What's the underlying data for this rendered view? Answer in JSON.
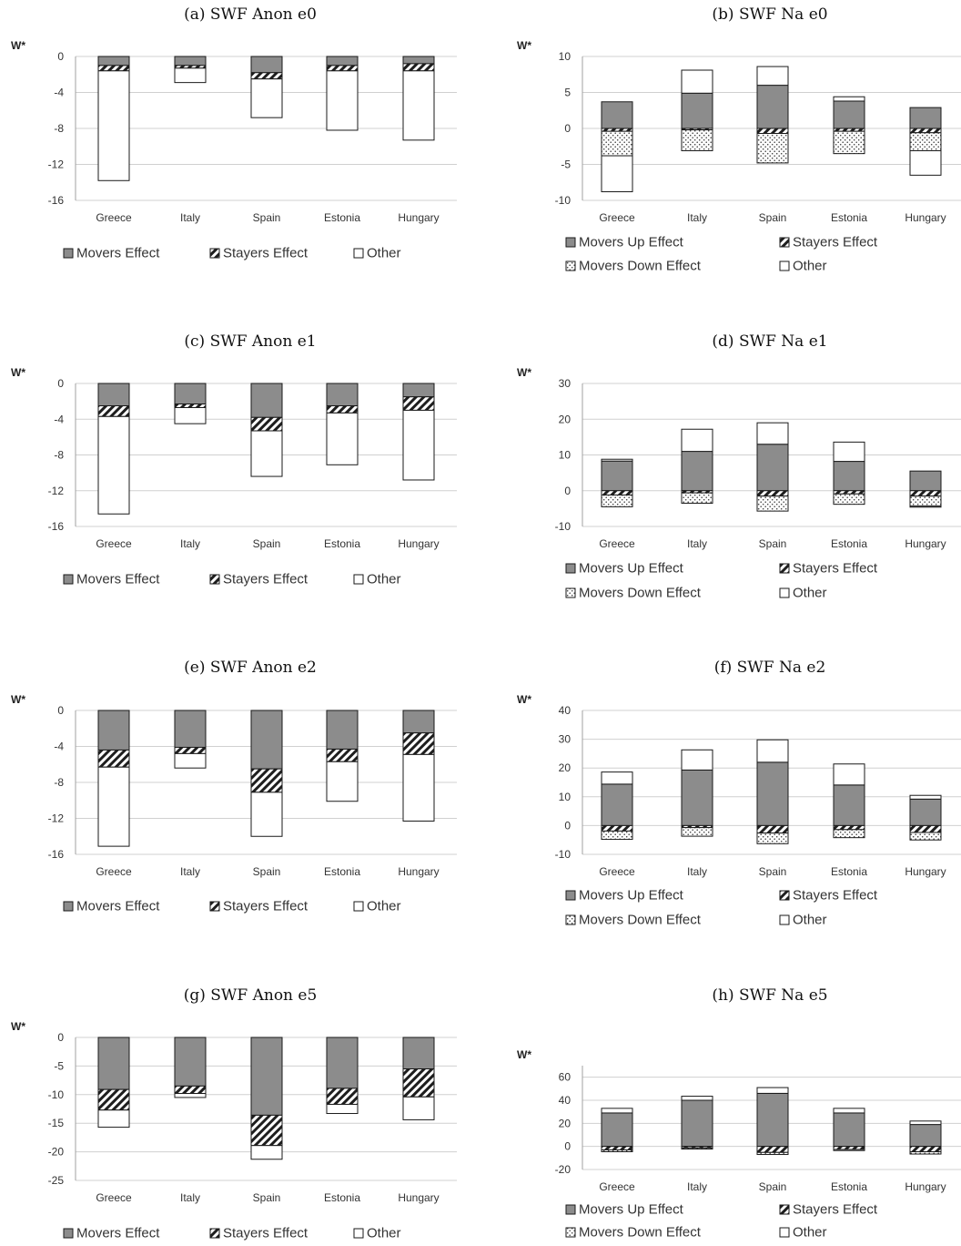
{
  "chart_data": [
    {
      "title": "(a) SWF Anon e0",
      "type": "bar",
      "stacked": true,
      "ylabel": "W*",
      "ylim": [
        -16,
        0
      ],
      "yticks": [
        0,
        -4,
        -8,
        -12,
        -16
      ],
      "grid": true,
      "legend_position": "bottom",
      "categories": [
        "Greece",
        "Italy",
        "Spain",
        "Estonia",
        "Hungary"
      ],
      "series": [
        {
          "name": "Movers Effect",
          "values": [
            -1.0,
            -1.0,
            -1.8,
            -1.0,
            -0.8
          ]
        },
        {
          "name": "Stayers Effect",
          "values": [
            -0.6,
            -0.3,
            -0.7,
            -0.6,
            -0.8
          ]
        },
        {
          "name": "Other",
          "values": [
            -12.2,
            -1.6,
            -4.3,
            -6.6,
            -7.7
          ]
        }
      ]
    },
    {
      "title": "(b) SWF Na e0",
      "type": "bar",
      "stacked": true,
      "ylabel": "W*",
      "ylim": [
        -10,
        10
      ],
      "yticks": [
        10,
        5,
        0,
        -5,
        -10
      ],
      "grid": true,
      "legend_position": "bottom",
      "categories": [
        "Greece",
        "Italy",
        "Spain",
        "Estonia",
        "Hungary"
      ],
      "series": [
        {
          "name": "Movers Up Effect",
          "values": [
            3.7,
            4.9,
            6.0,
            3.8,
            2.9
          ]
        },
        {
          "name": "Stayers Effect",
          "values": [
            -0.4,
            -0.2,
            -0.7,
            -0.4,
            -0.6
          ]
        },
        {
          "name": "Movers Down Effect",
          "values": [
            -3.4,
            -2.9,
            -4.1,
            -3.1,
            -2.5
          ]
        },
        {
          "name": "Other",
          "values": [
            -5.0,
            3.2,
            2.6,
            0.6,
            -3.4
          ]
        }
      ]
    },
    {
      "title": "(c) SWF Anon e1",
      "type": "bar",
      "stacked": true,
      "ylabel": "W*",
      "ylim": [
        -16,
        0
      ],
      "yticks": [
        0,
        -4,
        -8,
        -12,
        -16
      ],
      "grid": true,
      "legend_position": "bottom",
      "categories": [
        "Greece",
        "Italy",
        "Spain",
        "Estonia",
        "Hungary"
      ],
      "series": [
        {
          "name": "Movers Effect",
          "values": [
            -2.5,
            -2.3,
            -3.8,
            -2.5,
            -1.5
          ]
        },
        {
          "name": "Stayers Effect",
          "values": [
            -1.2,
            -0.4,
            -1.5,
            -0.8,
            -1.5
          ]
        },
        {
          "name": "Other",
          "values": [
            -10.9,
            -1.8,
            -5.1,
            -5.8,
            -7.8
          ]
        }
      ]
    },
    {
      "title": "(d) SWF Na e1",
      "type": "bar",
      "stacked": true,
      "ylabel": "W*",
      "ylim": [
        -10,
        30
      ],
      "yticks": [
        30,
        20,
        10,
        0,
        -10
      ],
      "grid": true,
      "legend_position": "bottom",
      "categories": [
        "Greece",
        "Italy",
        "Spain",
        "Estonia",
        "Hungary"
      ],
      "series": [
        {
          "name": "Movers Up Effect",
          "values": [
            8.3,
            11.0,
            13.0,
            8.2,
            5.5
          ]
        },
        {
          "name": "Stayers Effect",
          "values": [
            -1.2,
            -0.6,
            -1.5,
            -0.9,
            -1.5
          ]
        },
        {
          "name": "Movers Down Effect",
          "values": [
            -3.3,
            -2.9,
            -4.2,
            -2.9,
            -2.8
          ]
        },
        {
          "name": "Other",
          "values": [
            0.5,
            6.2,
            6.0,
            5.4,
            -0.3
          ]
        }
      ]
    },
    {
      "title": "(e) SWF Anon e2",
      "type": "bar",
      "stacked": true,
      "ylabel": "W*",
      "ylim": [
        -16,
        0
      ],
      "yticks": [
        0,
        -4,
        -8,
        -12,
        -16
      ],
      "grid": true,
      "legend_position": "bottom",
      "categories": [
        "Greece",
        "Italy",
        "Spain",
        "Estonia",
        "Hungary"
      ],
      "series": [
        {
          "name": "Movers Effect",
          "values": [
            -4.4,
            -4.1,
            -6.5,
            -4.3,
            -2.5
          ]
        },
        {
          "name": "Stayers Effect",
          "values": [
            -1.9,
            -0.7,
            -2.6,
            -1.4,
            -2.4
          ]
        },
        {
          "name": "Other",
          "values": [
            -8.8,
            -1.6,
            -4.9,
            -4.4,
            -7.4
          ]
        }
      ]
    },
    {
      "title": "(f) SWF Na e2",
      "type": "bar",
      "stacked": true,
      "ylabel": "W*",
      "ylim": [
        -10,
        40
      ],
      "yticks": [
        40,
        30,
        20,
        10,
        0,
        -10
      ],
      "grid": true,
      "legend_position": "bottom",
      "categories": [
        "Greece",
        "Italy",
        "Spain",
        "Estonia",
        "Hungary"
      ],
      "series": [
        {
          "name": "Movers Up Effect",
          "values": [
            14.4,
            19.3,
            22.0,
            14.1,
            9.2
          ]
        },
        {
          "name": "Stayers Effect",
          "values": [
            -1.9,
            -0.7,
            -2.6,
            -1.4,
            -2.4
          ]
        },
        {
          "name": "Movers Down Effect",
          "values": [
            -2.9,
            -3.0,
            -3.7,
            -2.8,
            -2.6
          ]
        },
        {
          "name": "Other",
          "values": [
            4.2,
            7.0,
            7.8,
            7.3,
            1.3
          ]
        }
      ]
    },
    {
      "title": "(g) SWF Anon e5",
      "type": "bar",
      "stacked": true,
      "ylabel": "W*",
      "ylim": [
        -25,
        0
      ],
      "yticks": [
        0,
        -5,
        -10,
        -15,
        -20,
        -25
      ],
      "grid": true,
      "legend_position": "bottom",
      "categories": [
        "Greece",
        "Italy",
        "Spain",
        "Estonia",
        "Hungary"
      ],
      "series": [
        {
          "name": "Movers Effect",
          "values": [
            -9.1,
            -8.5,
            -13.6,
            -8.9,
            -5.5
          ]
        },
        {
          "name": "Stayers Effect",
          "values": [
            -3.6,
            -1.3,
            -5.3,
            -2.8,
            -4.9
          ]
        },
        {
          "name": "Other",
          "values": [
            -3.0,
            -0.7,
            -2.4,
            -1.6,
            -4.0
          ]
        }
      ]
    },
    {
      "title": "(h) SWF Na e5",
      "type": "bar",
      "stacked": true,
      "ylabel": "W*",
      "ylim": [
        -20,
        70
      ],
      "yticks": [
        60,
        40,
        20,
        0,
        -20
      ],
      "grid": true,
      "legend_position": "bottom",
      "categories": [
        "Greece",
        "Italy",
        "Spain",
        "Estonia",
        "Hungary"
      ],
      "series": [
        {
          "name": "Movers Up Effect",
          "values": [
            29.0,
            40.0,
            46.0,
            29.0,
            19.0
          ]
        },
        {
          "name": "Stayers Effect",
          "values": [
            -3.0,
            -1.3,
            -5.2,
            -2.6,
            -4.6
          ]
        },
        {
          "name": "Movers Down Effect",
          "values": [
            -1.6,
            -1.0,
            -1.8,
            -1.0,
            -2.0
          ]
        },
        {
          "name": "Other",
          "values": [
            4.0,
            3.5,
            5.0,
            4.0,
            3.0
          ]
        }
      ]
    }
  ],
  "styles": {
    "movers": "#8c8c8c",
    "stayers": "hatch-diagonal",
    "movers_down": "dotted",
    "other": "#ffffff",
    "grid": "#d0d0d0",
    "border": "#1a1a1a"
  }
}
